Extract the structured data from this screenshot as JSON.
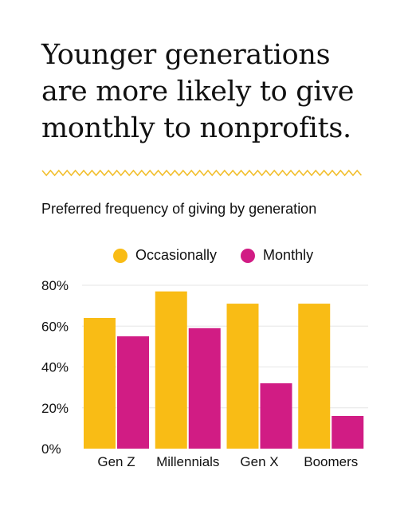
{
  "headline": "Younger generations are more likely to give monthly to nonprofits.",
  "subtitle": "Preferred frequency of giving by generation",
  "colors": {
    "occasionally": "#F9BC15",
    "monthly": "#D11C84",
    "accent_zigzag": "#F2BF2E",
    "gridline": "#E6E6E6",
    "text": "#111111"
  },
  "chart_data": {
    "type": "bar",
    "categories": [
      "Gen Z",
      "Millennials",
      "Gen X",
      "Boomers"
    ],
    "series": [
      {
        "name": "Occasionally",
        "values": [
          64,
          77,
          71,
          71
        ]
      },
      {
        "name": "Monthly",
        "values": [
          55,
          59,
          32,
          16
        ]
      }
    ],
    "yticks": [
      "0%",
      "20%",
      "40%",
      "60%",
      "80%"
    ],
    "ylim": [
      0,
      80
    ],
    "grid": true,
    "legend_position": "top"
  }
}
